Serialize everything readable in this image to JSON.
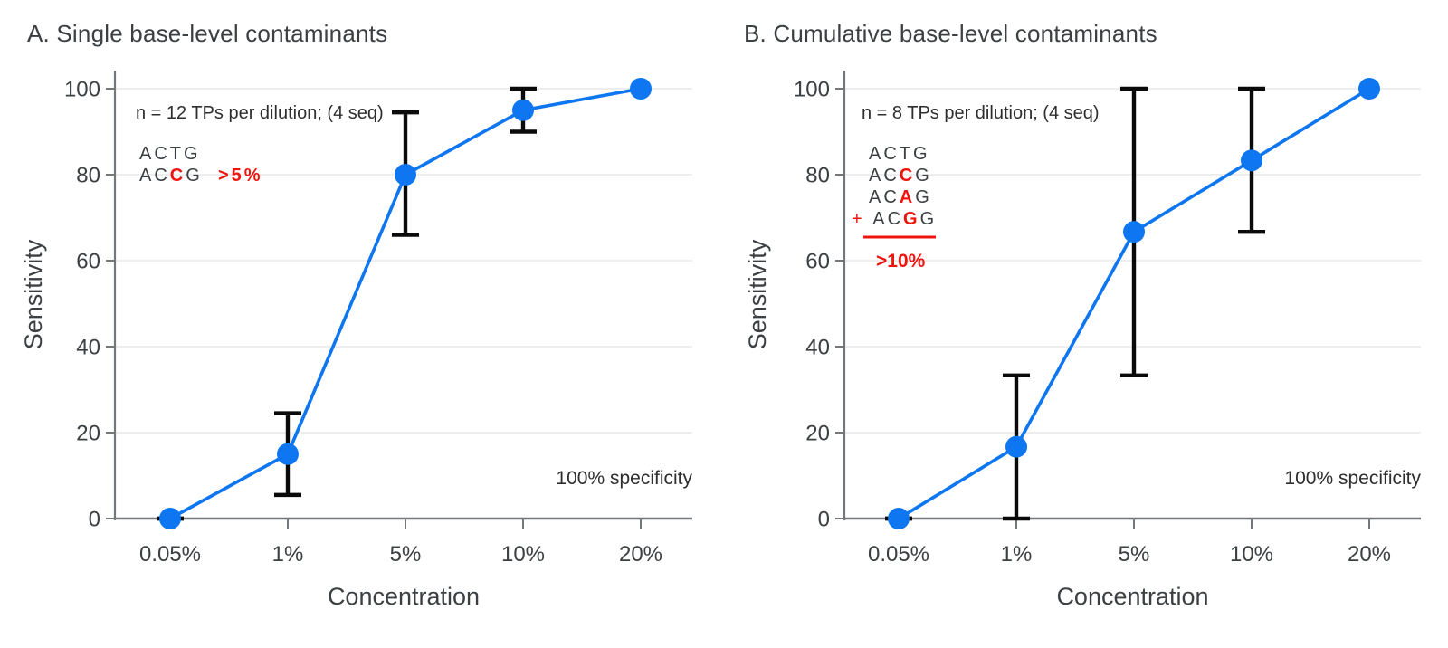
{
  "colors": {
    "blue": "#0d76f0",
    "red": "#f0140f",
    "text_dark": "#3c4043",
    "note_text": "#2e2e2e",
    "axis": "#75787b",
    "grid": "#e8e8e8",
    "error_bar": "#0a0a0a",
    "background": "#ffffff"
  },
  "chart_data": [
    {
      "type": "line",
      "title": "A. Single base-level contaminants",
      "xlabel": "Concentration",
      "ylabel": "Sensitivity",
      "categories": [
        "0.05%",
        "1%",
        "5%",
        "10%",
        "20%"
      ],
      "y_ticks": [
        0,
        20,
        40,
        60,
        80,
        100
      ],
      "ylim": [
        0,
        100
      ],
      "grid": true,
      "series": [
        {
          "name": "sensitivity",
          "values": [
            0,
            15,
            80,
            95,
            100
          ],
          "error_low": [
            0,
            5.5,
            66,
            90,
            null
          ],
          "error_high": [
            0,
            24.5,
            94.5,
            100,
            null
          ]
        }
      ],
      "notes": {
        "sample_size": "n = 12 TPs per dilution; (4 seq)",
        "specificity": "100% specificity"
      },
      "sequence_legend": {
        "lines": [
          {
            "prefix": false,
            "segments": [
              {
                "t": "ACTG"
              }
            ]
          },
          {
            "prefix": false,
            "segments": [
              {
                "t": "AC"
              },
              {
                "t": "C",
                "red": true,
                "bold": true
              },
              {
                "t": "G"
              },
              {
                "t": "  "
              },
              {
                "t": ">5%",
                "red": true,
                "bold": true
              }
            ]
          }
        ],
        "sum_line": false,
        "threshold": null
      }
    },
    {
      "type": "line",
      "title": "B. Cumulative base-level contaminants",
      "xlabel": "Concentration",
      "ylabel": "Sensitivity",
      "categories": [
        "0.05%",
        "1%",
        "5%",
        "10%",
        "20%"
      ],
      "y_ticks": [
        0,
        20,
        40,
        60,
        80,
        100
      ],
      "ylim": [
        0,
        100
      ],
      "grid": true,
      "series": [
        {
          "name": "sensitivity",
          "values": [
            0,
            16.7,
            66.7,
            83.3,
            100
          ],
          "error_low": [
            0,
            0,
            33.3,
            66.7,
            null
          ],
          "error_high": [
            0,
            33.3,
            100,
            100,
            null
          ]
        }
      ],
      "notes": {
        "sample_size": "n = 8 TPs per dilution; (4 seq)",
        "specificity": "100% specificity"
      },
      "sequence_legend": {
        "lines": [
          {
            "prefix": false,
            "segments": [
              {
                "t": "ACTG"
              }
            ]
          },
          {
            "prefix": false,
            "segments": [
              {
                "t": "AC"
              },
              {
                "t": "C",
                "red": true,
                "bold": true
              },
              {
                "t": "G"
              }
            ]
          },
          {
            "prefix": false,
            "segments": [
              {
                "t": "AC"
              },
              {
                "t": "A",
                "red": true,
                "bold": true
              },
              {
                "t": "G"
              }
            ]
          },
          {
            "prefix": true,
            "segments": [
              {
                "t": "+ ",
                "red": true
              },
              {
                "t": "AC"
              },
              {
                "t": "G",
                "red": true,
                "bold": true
              },
              {
                "t": "G"
              }
            ]
          }
        ],
        "sum_line": true,
        "threshold": ">10%"
      }
    }
  ]
}
